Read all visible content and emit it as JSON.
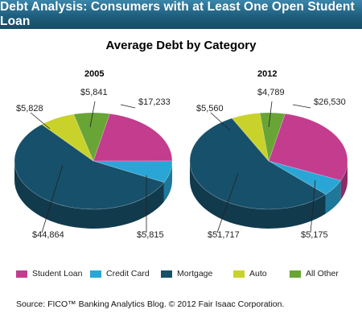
{
  "header": {
    "title": "Debt Analysis: Consumers with at Least One Open Student Loan"
  },
  "source": "Source: FICO™ Banking Analytics Blog.  © 2012 Fair Isaac Corporation.",
  "chart_data": {
    "type": "pie",
    "title": "Average Debt by Category",
    "legend_position": "bottom",
    "categories": [
      "Student Loan",
      "Credit Card",
      "Mortgage",
      "Auto",
      "All Other"
    ],
    "colors": {
      "Student Loan": "#c33c8e",
      "Credit Card": "#2aa6d6",
      "Mortgage": "#17506b",
      "Auto": "#c9d22b",
      "All Other": "#69a536"
    },
    "pies": [
      {
        "subtitle": "2005",
        "values": [
          17233,
          5815,
          44864,
          5828,
          5841
        ],
        "labels": [
          "$17,233",
          "$5,815",
          "$44,864",
          "$5,828",
          "$5,841"
        ]
      },
      {
        "subtitle": "2012",
        "values": [
          26530,
          5175,
          51717,
          5560,
          4789
        ],
        "labels": [
          "$26,530",
          "$5,175",
          "$51,717",
          "$5,560",
          "$4,789"
        ]
      }
    ]
  }
}
